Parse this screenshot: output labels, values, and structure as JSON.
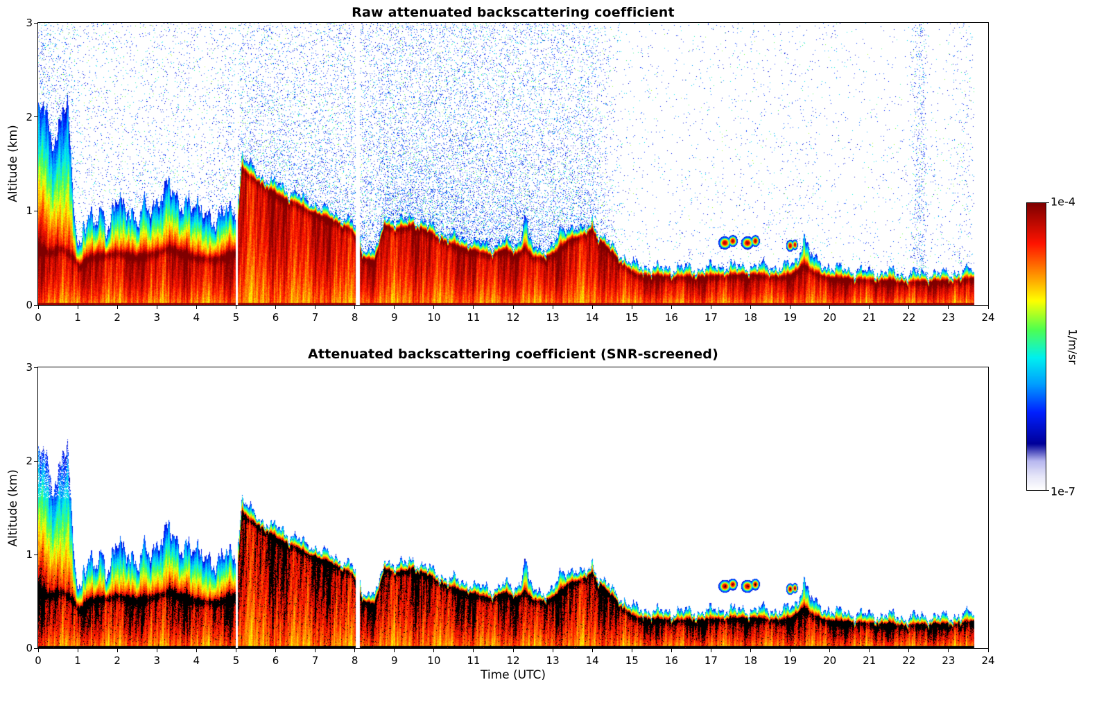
{
  "figure": {
    "background": "#ffffff"
  },
  "panels": [
    {
      "id": "raw",
      "title": "Raw attenuated backscattering coefficient",
      "ylabel": "Altitude (km)",
      "xticks": [
        0,
        1,
        2,
        3,
        4,
        5,
        6,
        7,
        8,
        9,
        10,
        11,
        12,
        13,
        14,
        15,
        16,
        17,
        18,
        19,
        20,
        21,
        22,
        23,
        24
      ],
      "yticks": [
        0,
        1,
        2,
        3
      ]
    },
    {
      "id": "screened",
      "title": "Attenuated backscattering coefficient (SNR-screened)",
      "ylabel": "Altitude (km)",
      "xlabel": "Time (UTC)",
      "xticks": [
        0,
        1,
        2,
        3,
        4,
        5,
        6,
        7,
        8,
        9,
        10,
        11,
        12,
        13,
        14,
        15,
        16,
        17,
        18,
        19,
        20,
        21,
        22,
        23,
        24
      ],
      "yticks": [
        0,
        1,
        2,
        3
      ]
    }
  ],
  "colorbar": {
    "top_label": "1e-4",
    "bottom_label": "1e-7",
    "unit_label": "1/m/sr"
  },
  "chart_data": {
    "type": "heatmap",
    "x": {
      "label": "Time (UTC)",
      "range": [
        0,
        24
      ],
      "units": "hours"
    },
    "y": {
      "label": "Altitude (km)",
      "range": [
        0,
        3
      ]
    },
    "value": {
      "label": "1/m/sr",
      "scale": "log",
      "min": 1e-07,
      "max": 0.0001
    },
    "colormap": [
      [
        0,
        "#ffffff"
      ],
      [
        0.05,
        "#e4e4f8"
      ],
      [
        0.1,
        "#b8b8f0"
      ],
      [
        0.16,
        "#000099"
      ],
      [
        0.27,
        "#0020ff"
      ],
      [
        0.37,
        "#00a0ff"
      ],
      [
        0.46,
        "#00f0f0"
      ],
      [
        0.56,
        "#50ff50"
      ],
      [
        0.66,
        "#ffff00"
      ],
      [
        0.76,
        "#ff8800"
      ],
      [
        0.86,
        "#ff1400"
      ],
      [
        1,
        "#7f0000"
      ]
    ],
    "layer_top_km": {
      "t": [
        0,
        0.15,
        0.35,
        0.5,
        0.65,
        0.75,
        0.85,
        0.95,
        1.05,
        1.15,
        1.3,
        1.45,
        1.6,
        1.75,
        1.9,
        2.05,
        2.2,
        2.35,
        2.5,
        2.65,
        2.8,
        3.0,
        3.15,
        3.3,
        3.45,
        3.6,
        3.75,
        3.9,
        4.1,
        4.3,
        4.5,
        4.7,
        4.9,
        5.05,
        5.15,
        5.3,
        5.5,
        5.7,
        5.9,
        6.1,
        6.3,
        6.5,
        6.7,
        6.9,
        7.1,
        7.3,
        7.5,
        7.7,
        7.9,
        8.05,
        8.2,
        8.4,
        8.6,
        8.75,
        8.9,
        9.1,
        9.3,
        9.45,
        9.6,
        9.8,
        10.0,
        10.3,
        10.6,
        10.9,
        11.2,
        11.5,
        11.8,
        12.0,
        12.2,
        12.3,
        12.4,
        12.6,
        12.8,
        13.0,
        13.2,
        13.4,
        13.6,
        13.8,
        14.0,
        14.1,
        14.3,
        14.5,
        14.7,
        14.9,
        15.1,
        15.4,
        15.8,
        16.2,
        16.6,
        17.0,
        17.4,
        17.8,
        18.2,
        18.6,
        19.0,
        19.2,
        19.35,
        19.5,
        19.7,
        20.0,
        20.4,
        20.8,
        21.2,
        21.6,
        22.0,
        22.4,
        22.8,
        23.2,
        23.65
      ],
      "v": [
        2.05,
        2.1,
        1.7,
        1.9,
        2.15,
        2.1,
        1.3,
        0.8,
        0.6,
        0.9,
        0.95,
        0.8,
        1.0,
        0.85,
        1.05,
        1.1,
        0.95,
        1.05,
        0.9,
        1.05,
        0.95,
        1.1,
        1.25,
        1.3,
        1.1,
        1.05,
        1.2,
        1.05,
        0.95,
        1.0,
        0.9,
        0.95,
        1.0,
        1.1,
        1.6,
        1.5,
        1.42,
        1.35,
        1.3,
        1.28,
        1.22,
        1.18,
        1.12,
        1.1,
        1.05,
        1.0,
        0.97,
        0.93,
        0.88,
        0.8,
        0.62,
        0.58,
        0.62,
        0.95,
        0.92,
        0.88,
        0.9,
        0.95,
        0.9,
        0.85,
        0.82,
        0.75,
        0.72,
        0.68,
        0.65,
        0.63,
        0.68,
        0.63,
        0.7,
        1.02,
        0.68,
        0.6,
        0.6,
        0.62,
        0.78,
        0.85,
        0.82,
        0.78,
        0.92,
        0.8,
        0.7,
        0.62,
        0.55,
        0.47,
        0.42,
        0.4,
        0.38,
        0.4,
        0.38,
        0.4,
        0.42,
        0.4,
        0.42,
        0.4,
        0.42,
        0.5,
        0.75,
        0.55,
        0.45,
        0.4,
        0.38,
        0.36,
        0.35,
        0.34,
        0.33,
        0.34,
        0.33,
        0.34,
        0.38
      ]
    },
    "band_center_km": {
      "t": [
        0,
        0.3,
        0.6,
        0.9,
        1.05,
        1.3,
        1.6,
        2.0,
        2.5,
        3.0,
        3.3,
        3.6,
        4.0,
        4.5,
        5.0,
        5.15,
        5.3,
        5.6,
        5.9,
        6.2,
        6.5,
        6.8,
        7.1,
        7.4,
        7.7,
        7.95,
        8.2,
        8.5,
        8.75,
        9.0,
        9.3,
        9.5,
        9.8,
        10.1,
        10.4,
        10.7,
        11.0,
        11.4,
        11.8,
        12.1,
        12.3,
        12.5,
        12.8,
        13.1,
        13.4,
        13.7,
        14.0,
        14.2,
        14.5,
        14.8,
        15.1,
        15.5,
        16.0,
        16.5,
        17.0,
        17.5,
        18.0,
        18.5,
        19.0,
        19.35,
        19.6,
        20.0,
        20.5,
        21.0,
        21.5,
        22.0,
        22.5,
        23.0,
        23.65
      ],
      "v": [
        0.6,
        0.55,
        0.6,
        0.5,
        0.4,
        0.5,
        0.52,
        0.55,
        0.5,
        0.55,
        0.6,
        0.55,
        0.5,
        0.48,
        0.55,
        1.45,
        1.38,
        1.3,
        1.2,
        1.12,
        1.08,
        1.0,
        0.95,
        0.9,
        0.85,
        0.78,
        0.5,
        0.45,
        0.85,
        0.8,
        0.82,
        0.85,
        0.78,
        0.72,
        0.65,
        0.6,
        0.57,
        0.53,
        0.58,
        0.52,
        0.6,
        0.5,
        0.5,
        0.55,
        0.68,
        0.72,
        0.8,
        0.68,
        0.55,
        0.42,
        0.32,
        0.3,
        0.3,
        0.29,
        0.3,
        0.31,
        0.32,
        0.3,
        0.3,
        0.42,
        0.34,
        0.28,
        0.27,
        0.26,
        0.25,
        0.24,
        0.25,
        0.25,
        0.28
      ]
    },
    "noise_density": {
      "t": [
        0,
        0.5,
        1.0,
        2.0,
        3.0,
        4.0,
        5.0,
        5.5,
        6.0,
        7.0,
        8.0,
        8.5,
        9.0,
        10.0,
        11.0,
        12.0,
        13.0,
        14.0,
        14.5,
        15.0,
        16.0,
        17.0,
        18.0,
        19.0,
        20.0,
        21.0,
        22.0,
        22.25,
        22.35,
        22.5,
        23.0,
        23.3,
        23.65
      ],
      "v": [
        0.5,
        0.35,
        0.22,
        0.18,
        0.2,
        0.18,
        0.25,
        0.3,
        0.3,
        0.32,
        0.35,
        0.45,
        0.5,
        0.5,
        0.5,
        0.45,
        0.42,
        0.35,
        0.15,
        0.06,
        0.05,
        0.08,
        0.08,
        0.1,
        0.06,
        0.05,
        0.07,
        0.6,
        0.6,
        0.07,
        0.06,
        0.18,
        0.12
      ]
    },
    "gaps_t": [
      [
        5.0,
        5.05
      ],
      [
        8.02,
        8.12
      ]
    ],
    "clouds": [
      {
        "t": 17.35,
        "alt": 0.66,
        "w": 0.13,
        "h": 0.055
      },
      {
        "t": 17.55,
        "alt": 0.68,
        "w": 0.1,
        "h": 0.05
      },
      {
        "t": 17.92,
        "alt": 0.66,
        "w": 0.13,
        "h": 0.055
      },
      {
        "t": 18.12,
        "alt": 0.68,
        "w": 0.09,
        "h": 0.05
      },
      {
        "t": 19.0,
        "alt": 0.63,
        "w": 0.08,
        "h": 0.05
      },
      {
        "t": 19.12,
        "alt": 0.64,
        "w": 0.06,
        "h": 0.045
      }
    ],
    "data_end_t": 23.65
  }
}
